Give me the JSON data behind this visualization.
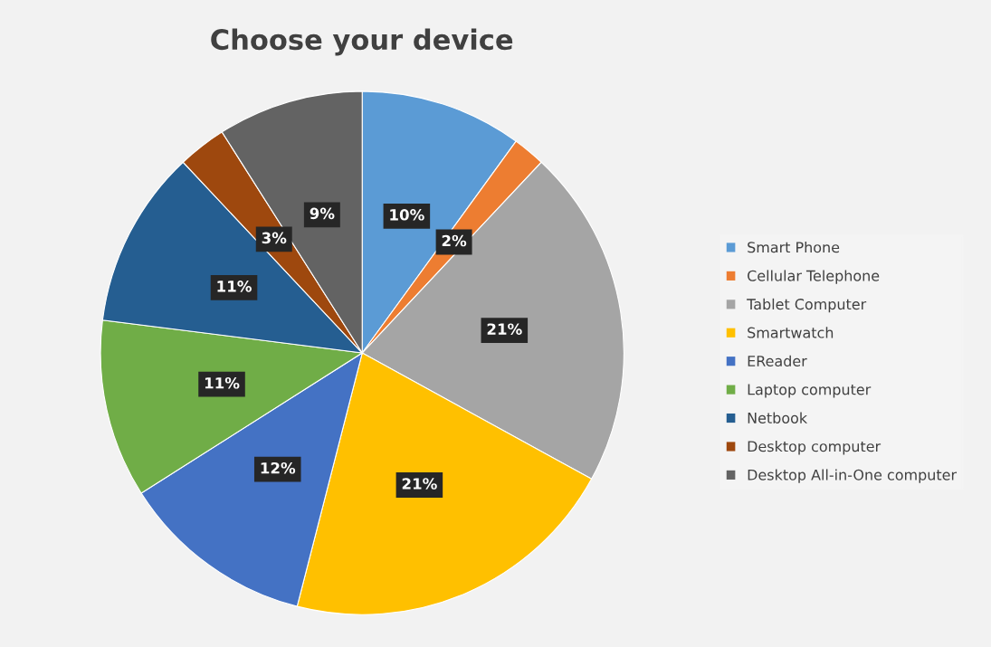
{
  "chart_data": {
    "type": "pie",
    "title": "Choose your device",
    "categories": [
      "Smart Phone",
      "Cellular Telephone",
      "Tablet Computer",
      "Smartwatch",
      "EReader",
      "Laptop computer",
      "Netbook",
      "Desktop computer",
      "Desktop All-in-One computer"
    ],
    "values": [
      10,
      2,
      21,
      21,
      12,
      11,
      11,
      3,
      9
    ],
    "colors": [
      "#5b9bd5",
      "#ed7d31",
      "#a5a5a5",
      "#ffc000",
      "#4472c4",
      "#70ad47",
      "#255e91",
      "#9e480e",
      "#636363"
    ],
    "value_labels": [
      "10%",
      "2%",
      "21%",
      "21%",
      "12%",
      "11%",
      "11%",
      "3%",
      "9%"
    ],
    "legend": "right"
  }
}
